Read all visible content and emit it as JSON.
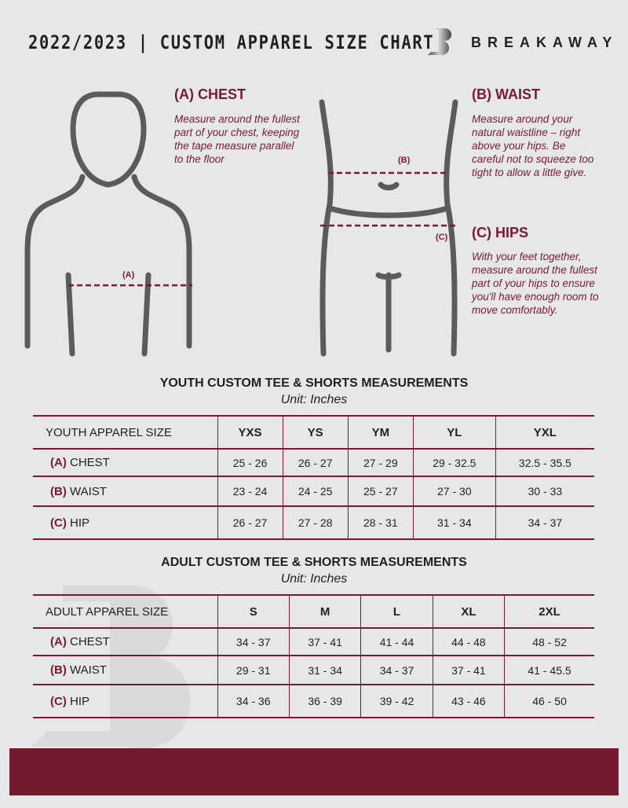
{
  "header": {
    "title": "2022/2023 | CUSTOM APPAREL SIZE CHART",
    "brand": "BREAKAWAY"
  },
  "guide": {
    "chest": {
      "title": "(A) CHEST",
      "desc": "Measure around the fullest part of your chest, keeping the tape measure parallel to the floor",
      "mark": "(A)"
    },
    "waist": {
      "title": "(B) WAIST",
      "desc": "Measure around your natural waistline – right above your hips. Be careful not to squeeze too tight to allow a little give.",
      "mark": "(B)"
    },
    "hips": {
      "title": "(C) HIPS",
      "desc": "With your feet together, measure around the fullest part of your hips to ensure you'll have enough room to move comfortably.",
      "mark": "(C)"
    }
  },
  "youth": {
    "title": "YOUTH CUSTOM TEE & SHORTS MEASUREMENTS",
    "unit": "Unit: Inches",
    "header": "YOUTH APPAREL SIZE",
    "sizes": [
      "YXS",
      "YS",
      "YM",
      "YL",
      "YXL"
    ],
    "rows": [
      {
        "letter": "(A)",
        "name": "CHEST",
        "values": [
          "25 - 26",
          "26 - 27",
          "27 - 29",
          "29 - 32.5",
          "32.5 - 35.5"
        ]
      },
      {
        "letter": "(B)",
        "name": "WAIST",
        "values": [
          "23 - 24",
          "24 - 25",
          "25 - 27",
          "27 - 30",
          "30 - 33"
        ]
      },
      {
        "letter": "(C)",
        "name": "HIP",
        "values": [
          "26 - 27",
          "27 - 28",
          "28 - 31",
          "31 - 34",
          "34 - 37"
        ]
      }
    ]
  },
  "adult": {
    "title": "ADULT CUSTOM TEE & SHORTS MEASUREMENTS",
    "unit": "Unit: Inches",
    "header": "ADULT APPAREL SIZE",
    "sizes": [
      "S",
      "M",
      "L",
      "XL",
      "2XL"
    ],
    "rows": [
      {
        "letter": "(A)",
        "name": "CHEST",
        "values": [
          "34 - 37",
          "37 - 41",
          "41 - 44",
          "44 - 48",
          "48 - 52"
        ]
      },
      {
        "letter": "(B)",
        "name": "WAIST",
        "values": [
          "29 - 31",
          "31 - 34",
          "34 - 37",
          "37 - 41",
          "41 - 45.5"
        ]
      },
      {
        "letter": "(C)",
        "name": "HIP",
        "values": [
          "34 - 36",
          "36 - 39",
          "39 - 42",
          "43 - 46",
          "46 - 50"
        ]
      }
    ]
  },
  "colors": {
    "accent": "#7a1a30",
    "footer": "#731a2e",
    "background": "#e6e7e9"
  }
}
